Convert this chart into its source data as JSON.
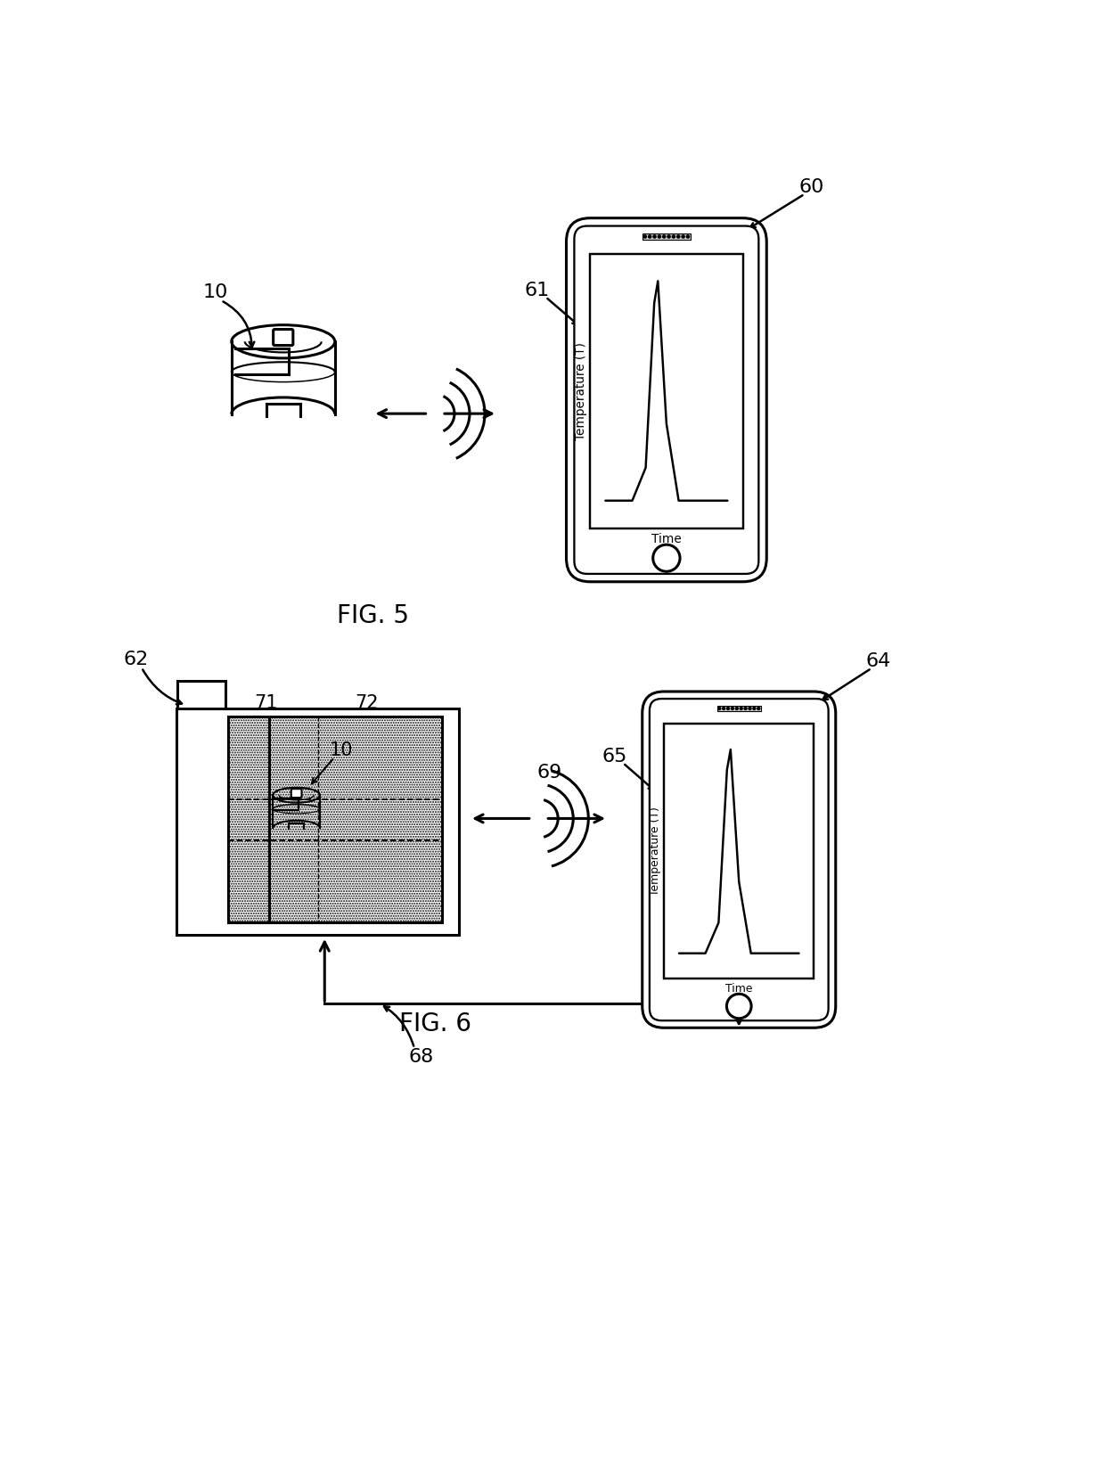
{
  "fig5_label": "FIG. 5",
  "fig6_label": "FIG. 6",
  "background_color": "#ffffff",
  "line_color": "#000000",
  "temp_label": "Temperature (T)",
  "time_label": "Time",
  "labels": {
    "10a": "10",
    "60": "60",
    "61": "61",
    "10b": "10",
    "62": "62",
    "64": "64",
    "65": "65",
    "68": "68",
    "69": "69",
    "71": "71",
    "72": "72"
  }
}
